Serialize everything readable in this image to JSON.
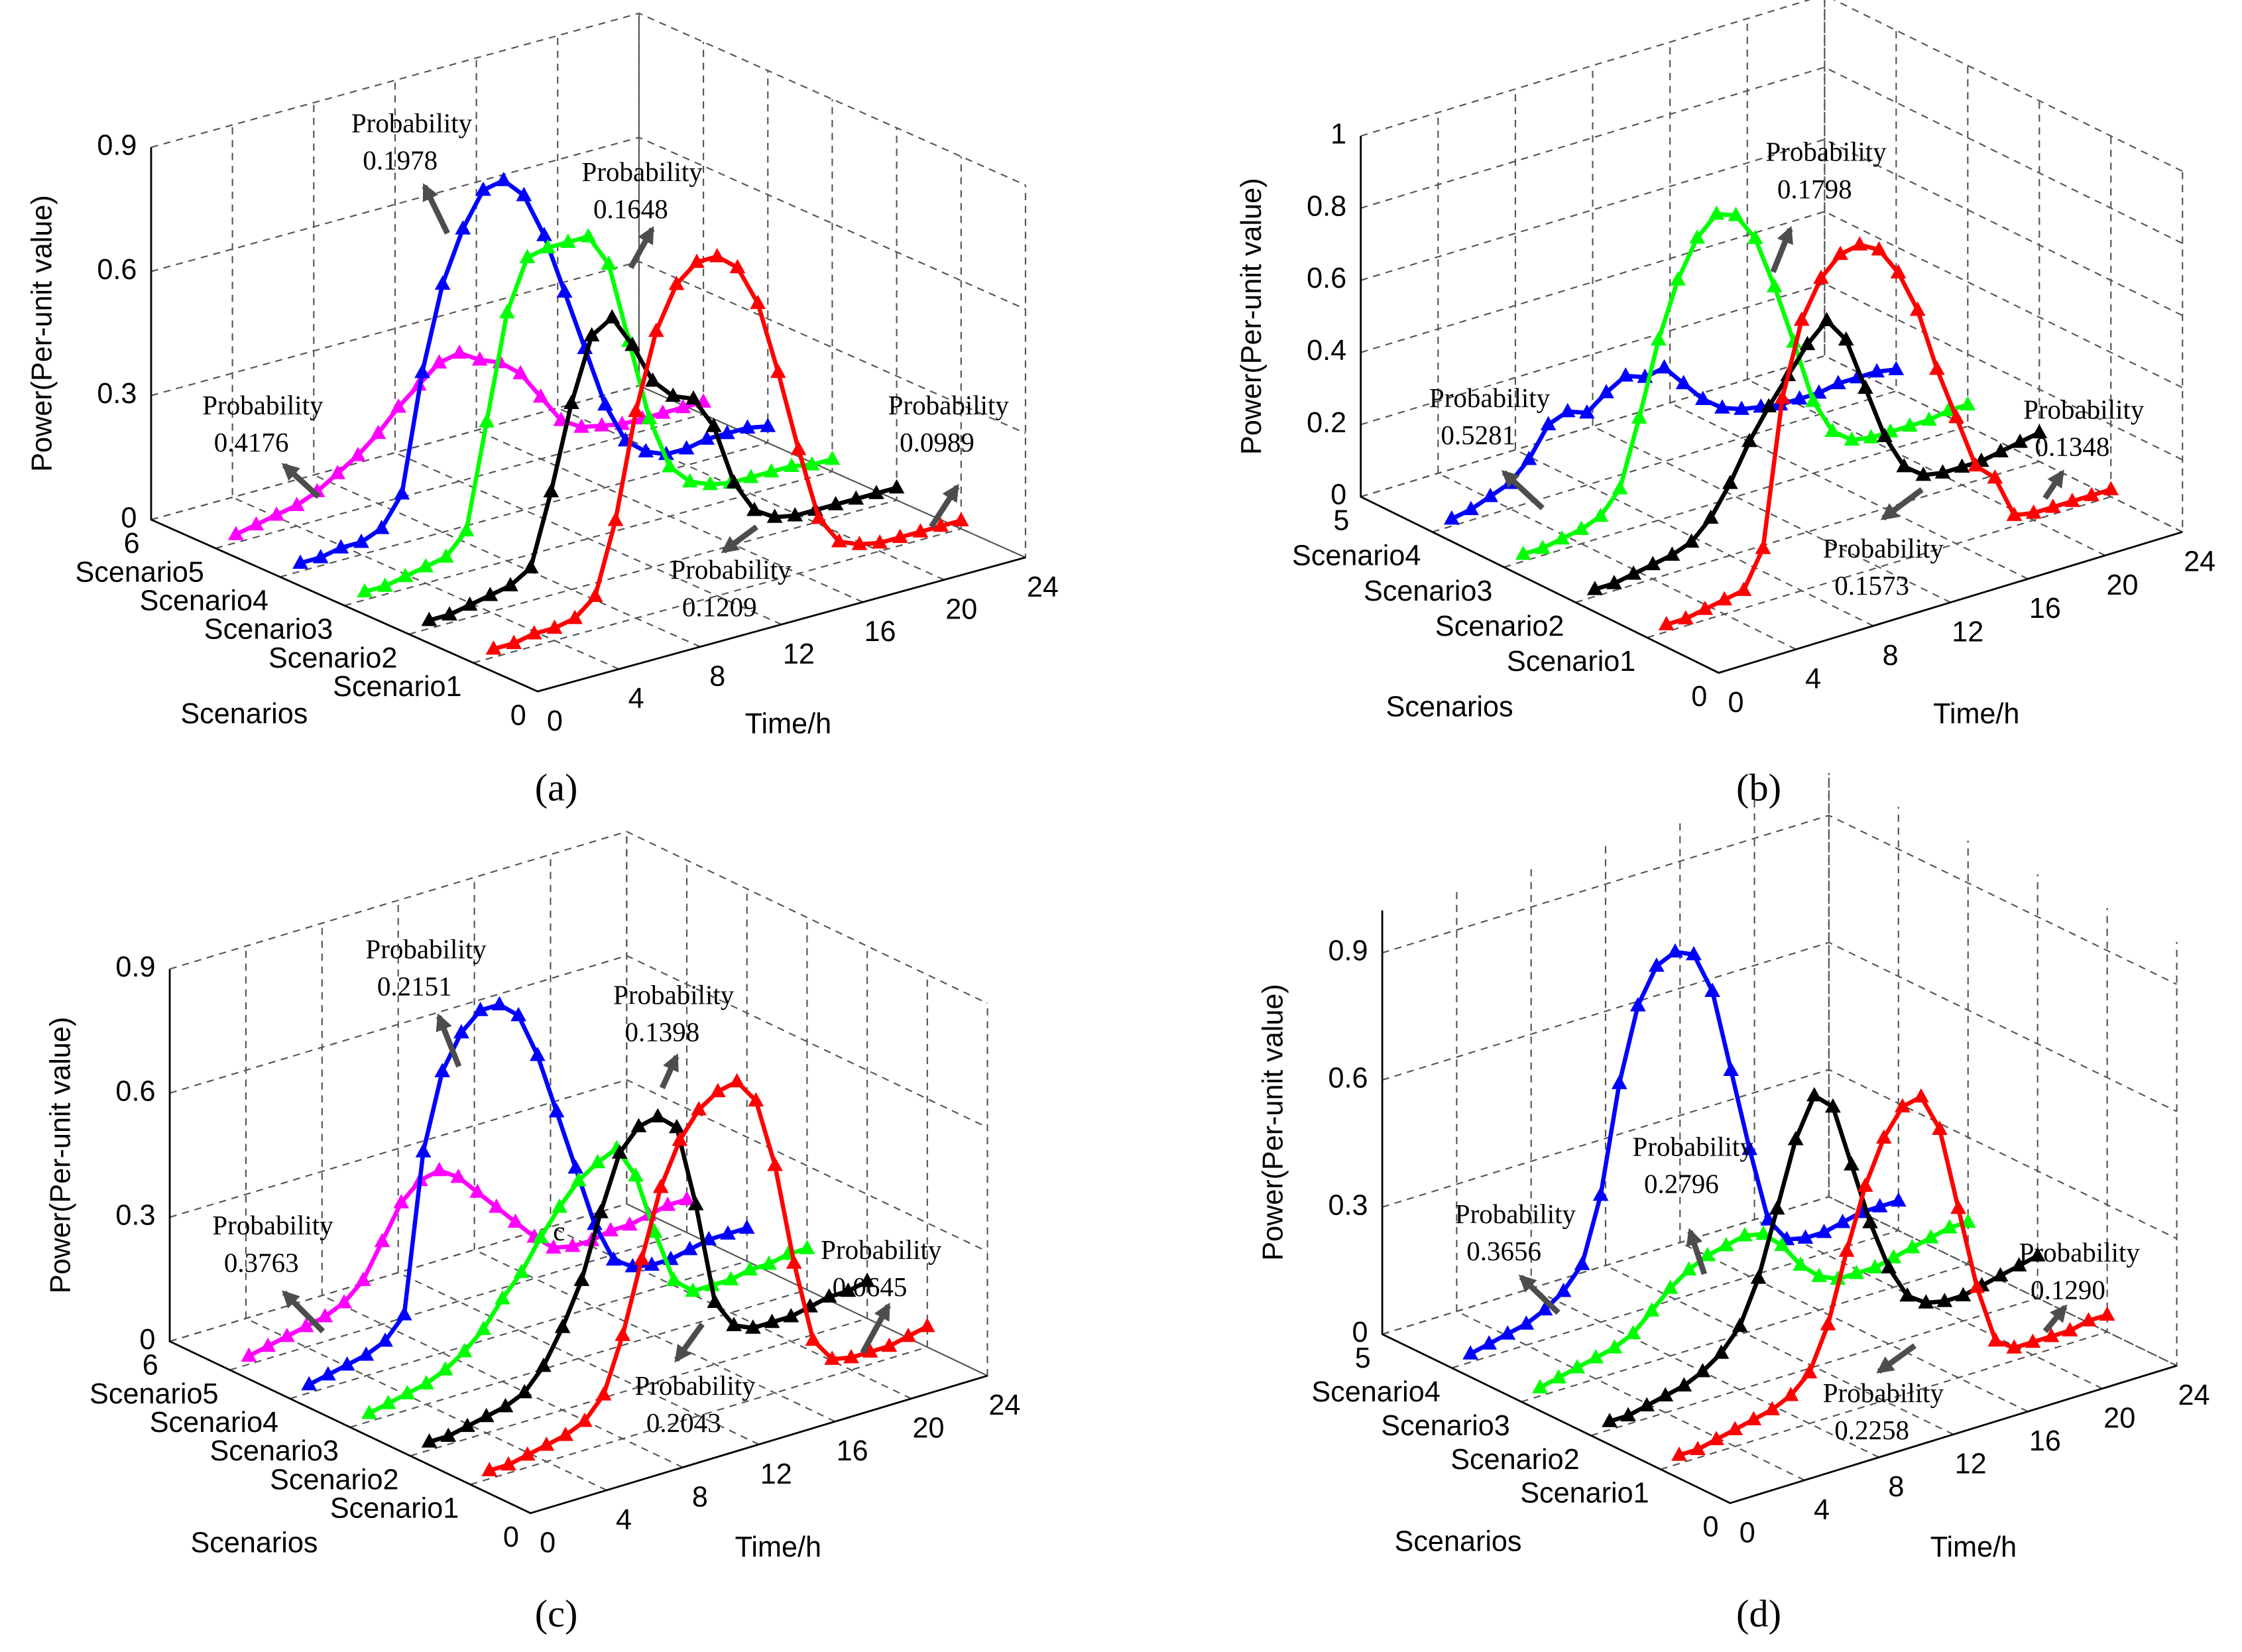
{
  "chart_data": [
    {
      "type": "line",
      "panel_label": "(a)",
      "xlabel": "Time/h",
      "ylabel": "Scenarios",
      "zlabel": "Power(Per-unit value)",
      "x": [
        1,
        2,
        3,
        4,
        5,
        6,
        7,
        8,
        9,
        10,
        11,
        12,
        13,
        14,
        15,
        16,
        17,
        18,
        19,
        20,
        21,
        22,
        23,
        24
      ],
      "xlim": [
        0,
        24
      ],
      "xticks": [
        0,
        4,
        8,
        12,
        16,
        20,
        24
      ],
      "ylim": [
        0,
        6
      ],
      "yticks": [
        0,
        {
          "value": 1,
          "label": "Scenario1"
        },
        {
          "value": 2,
          "label": "Scenario2"
        },
        {
          "value": 3,
          "label": "Scenario3"
        },
        {
          "value": 4,
          "label": "Scenario4"
        },
        {
          "value": 5,
          "label": "Scenario5"
        },
        6
      ],
      "zlim": [
        0,
        0.9
      ],
      "zticks": [
        0,
        0.3,
        0.6,
        0.9
      ],
      "grid": true,
      "series": [
        {
          "color": "#ff00ff",
          "scenario": 5,
          "annotation": "Probability",
          "probability": 0.4176,
          "values": [
            0.02,
            0.03,
            0.04,
            0.05,
            0.07,
            0.1,
            0.13,
            0.17,
            0.22,
            0.26,
            0.3,
            0.31,
            0.28,
            0.26,
            0.22,
            0.15,
            0.08,
            0.05,
            0.04,
            0.03,
            0.03,
            0.03,
            0.03,
            0.03
          ]
        },
        {
          "color": "#0000ff",
          "scenario": 4,
          "annotation": "Probability",
          "probability": 0.1978,
          "values": [
            0.02,
            0.02,
            0.03,
            0.03,
            0.05,
            0.12,
            0.4,
            0.6,
            0.72,
            0.8,
            0.81,
            0.76,
            0.65,
            0.5,
            0.35,
            0.2,
            0.1,
            0.06,
            0.04,
            0.04,
            0.05,
            0.05,
            0.05,
            0.04
          ]
        },
        {
          "color": "#00ff00",
          "scenario": 3,
          "annotation": "Probability",
          "probability": 0.1648,
          "values": [
            0.02,
            0.02,
            0.03,
            0.04,
            0.05,
            0.1,
            0.35,
            0.6,
            0.72,
            0.73,
            0.73,
            0.73,
            0.65,
            0.45,
            0.25,
            0.12,
            0.07,
            0.05,
            0.04,
            0.04,
            0.04,
            0.04,
            0.03,
            0.03
          ]
        },
        {
          "color": "#000000",
          "scenario": 2,
          "annotation": "Probability",
          "probability": 0.1209,
          "values": [
            0.02,
            0.02,
            0.03,
            0.04,
            0.05,
            0.08,
            0.25,
            0.45,
            0.6,
            0.63,
            0.55,
            0.45,
            0.4,
            0.38,
            0.3,
            0.15,
            0.07,
            0.04,
            0.03,
            0.03,
            0.03,
            0.03,
            0.03,
            0.03
          ]
        },
        {
          "color": "#ff0000",
          "scenario": 1,
          "annotation": "Probability",
          "probability": 0.0989,
          "values": [
            0.02,
            0.02,
            0.03,
            0.03,
            0.04,
            0.08,
            0.25,
            0.5,
            0.68,
            0.78,
            0.82,
            0.82,
            0.78,
            0.68,
            0.5,
            0.3,
            0.12,
            0.05,
            0.03,
            0.02,
            0.02,
            0.02,
            0.02,
            0.02
          ]
        }
      ]
    },
    {
      "type": "line",
      "panel_label": "(b)",
      "xlabel": "Time/h",
      "ylabel": "Scenarios",
      "zlabel": "Power(Per-unit value)",
      "x": [
        1,
        2,
        3,
        4,
        5,
        6,
        7,
        8,
        9,
        10,
        11,
        12,
        13,
        14,
        15,
        16,
        17,
        18,
        19,
        20,
        21,
        22,
        23,
        24
      ],
      "xlim": [
        0,
        24
      ],
      "xticks": [
        0,
        4,
        8,
        12,
        16,
        20,
        24
      ],
      "ylim": [
        0,
        5
      ],
      "yticks": [
        0,
        {
          "value": 1,
          "label": "Scenario1"
        },
        {
          "value": 2,
          "label": "Scenario2"
        },
        {
          "value": 3,
          "label": "Scenario3"
        },
        {
          "value": 4,
          "label": "Scenario4"
        },
        5
      ],
      "zlim": [
        0,
        1
      ],
      "zticks": [
        0,
        0.2,
        0.4,
        0.6,
        0.8,
        1
      ],
      "grid": true,
      "series": [
        {
          "color": "#0000ff",
          "scenario": 4,
          "annotation": "Probability",
          "probability": 0.5281,
          "values": [
            0.02,
            0.03,
            0.05,
            0.07,
            0.12,
            0.2,
            0.22,
            0.2,
            0.24,
            0.27,
            0.25,
            0.26,
            0.2,
            0.14,
            0.1,
            0.08,
            0.07,
            0.06,
            0.06,
            0.06,
            0.07,
            0.07,
            0.07,
            0.06
          ]
        },
        {
          "color": "#00ff00",
          "scenario": 3,
          "annotation": "Probability",
          "probability": 0.1798,
          "values": [
            0.02,
            0.02,
            0.03,
            0.04,
            0.06,
            0.12,
            0.3,
            0.5,
            0.65,
            0.75,
            0.8,
            0.78,
            0.7,
            0.55,
            0.38,
            0.2,
            0.1,
            0.06,
            0.05,
            0.05,
            0.05,
            0.05,
            0.06,
            0.06
          ]
        },
        {
          "color": "#000000",
          "scenario": 2,
          "annotation": "Probability",
          "probability": 0.1573,
          "values": [
            0.02,
            0.02,
            0.03,
            0.04,
            0.05,
            0.07,
            0.12,
            0.2,
            0.3,
            0.38,
            0.45,
            0.52,
            0.57,
            0.5,
            0.35,
            0.2,
            0.1,
            0.06,
            0.05,
            0.05,
            0.05,
            0.06,
            0.07,
            0.08
          ]
        },
        {
          "color": "#ff0000",
          "scenario": 1,
          "annotation": "Probability",
          "probability": 0.1348,
          "values": [
            0.02,
            0.02,
            0.03,
            0.04,
            0.05,
            0.15,
            0.55,
            0.75,
            0.85,
            0.9,
            0.91,
            0.88,
            0.8,
            0.68,
            0.5,
            0.35,
            0.2,
            0.15,
            0.03,
            0.02,
            0.02,
            0.02,
            0.02,
            0.02
          ]
        }
      ]
    },
    {
      "type": "line",
      "panel_label": "(c)",
      "xlabel": "Time/h",
      "ylabel": "Scenarios",
      "zlabel": "Power(Per-unit value)",
      "note": "c",
      "x": [
        1,
        2,
        3,
        4,
        5,
        6,
        7,
        8,
        9,
        10,
        11,
        12,
        13,
        14,
        15,
        16,
        17,
        18,
        19,
        20,
        21,
        22,
        23,
        24
      ],
      "xlim": [
        0,
        24
      ],
      "xticks": [
        0,
        4,
        8,
        12,
        16,
        20,
        24
      ],
      "ylim": [
        0,
        6
      ],
      "yticks": [
        0,
        {
          "value": 1,
          "label": "Scenario1"
        },
        {
          "value": 2,
          "label": "Scenario2"
        },
        {
          "value": 3,
          "label": "Scenario3"
        },
        {
          "value": 4,
          "label": "Scenario4"
        },
        {
          "value": 5,
          "label": "Scenario5"
        },
        6
      ],
      "zlim": [
        0,
        0.9
      ],
      "zticks": [
        0,
        0.3,
        0.6,
        0.9
      ],
      "grid": true,
      "series": [
        {
          "color": "#ff00ff",
          "scenario": 5,
          "annotation": "Probability",
          "probability": 0.3763,
          "values": [
            0.02,
            0.03,
            0.04,
            0.05,
            0.06,
            0.08,
            0.12,
            0.2,
            0.28,
            0.32,
            0.33,
            0.3,
            0.25,
            0.2,
            0.15,
            0.1,
            0.06,
            0.05,
            0.05,
            0.06,
            0.06,
            0.07,
            0.08,
            0.08
          ]
        },
        {
          "color": "#0000ff",
          "scenario": 4,
          "annotation": "Probability",
          "probability": 0.2151,
          "values": [
            0.02,
            0.03,
            0.04,
            0.05,
            0.07,
            0.12,
            0.5,
            0.68,
            0.76,
            0.8,
            0.8,
            0.76,
            0.65,
            0.5,
            0.35,
            0.2,
            0.1,
            0.07,
            0.06,
            0.06,
            0.07,
            0.08,
            0.08,
            0.08
          ]
        },
        {
          "color": "#00ff00",
          "scenario": 3,
          "annotation": "Probability",
          "probability": 0.1398,
          "values": [
            0.02,
            0.03,
            0.04,
            0.05,
            0.07,
            0.1,
            0.14,
            0.2,
            0.25,
            0.32,
            0.38,
            0.43,
            0.46,
            0.48,
            0.4,
            0.25,
            0.12,
            0.08,
            0.08,
            0.08,
            0.09,
            0.09,
            0.1,
            0.1
          ]
        },
        {
          "color": "#000000",
          "scenario": 2,
          "annotation": "Probability",
          "probability": 0.2043,
          "values": [
            0.02,
            0.02,
            0.03,
            0.04,
            0.05,
            0.07,
            0.12,
            0.2,
            0.3,
            0.45,
            0.58,
            0.63,
            0.64,
            0.6,
            0.4,
            0.15,
            0.08,
            0.06,
            0.06,
            0.06,
            0.07,
            0.08,
            0.08,
            0.09
          ]
        },
        {
          "color": "#ff0000",
          "scenario": 1,
          "annotation": "Probability",
          "probability": 0.0645,
          "values": [
            0.02,
            0.02,
            0.03,
            0.04,
            0.05,
            0.07,
            0.12,
            0.25,
            0.42,
            0.58,
            0.68,
            0.74,
            0.77,
            0.78,
            0.72,
            0.55,
            0.3,
            0.1,
            0.04,
            0.03,
            0.03,
            0.03,
            0.04,
            0.05
          ]
        }
      ]
    },
    {
      "type": "line",
      "panel_label": "(d)",
      "xlabel": "Time/h",
      "ylabel": "Scenarios",
      "zlabel": "Power(Per-unit value)",
      "x": [
        1,
        2,
        3,
        4,
        5,
        6,
        7,
        8,
        9,
        10,
        11,
        12,
        13,
        14,
        15,
        16,
        17,
        18,
        19,
        20,
        21,
        22,
        23,
        24
      ],
      "xlim": [
        0,
        24
      ],
      "xticks": [
        0,
        4,
        8,
        12,
        16,
        20,
        24
      ],
      "ylim": [
        0,
        5
      ],
      "yticks": [
        0,
        {
          "value": 1,
          "label": "Scenario1"
        },
        {
          "value": 2,
          "label": "Scenario2"
        },
        {
          "value": 3,
          "label": "Scenario3"
        },
        {
          "value": 4,
          "label": "Scenario4"
        },
        5
      ],
      "zlim": [
        0,
        1
      ],
      "zticks": [
        0,
        0.3,
        0.6,
        0.9
      ],
      "grid": true,
      "series": [
        {
          "color": "#0000ff",
          "scenario": 4,
          "annotation": "Probability",
          "probability": 0.3656,
          "values": [
            0.02,
            0.03,
            0.04,
            0.05,
            0.07,
            0.1,
            0.15,
            0.3,
            0.55,
            0.72,
            0.8,
            0.82,
            0.8,
            0.7,
            0.5,
            0.3,
            0.12,
            0.06,
            0.05,
            0.05,
            0.06,
            0.07,
            0.07,
            0.07
          ]
        },
        {
          "color": "#00ff00",
          "scenario": 3,
          "annotation": "Probability",
          "probability": 0.2796,
          "values": [
            0.02,
            0.03,
            0.04,
            0.05,
            0.06,
            0.08,
            0.12,
            0.16,
            0.19,
            0.21,
            0.22,
            0.23,
            0.22,
            0.18,
            0.12,
            0.08,
            0.06,
            0.06,
            0.06,
            0.07,
            0.08,
            0.09,
            0.1,
            0.1
          ]
        },
        {
          "color": "#000000",
          "scenario": 2,
          "annotation": "Probability",
          "probability": 0.2258,
          "values": [
            0.02,
            0.02,
            0.03,
            0.04,
            0.05,
            0.07,
            0.1,
            0.15,
            0.25,
            0.4,
            0.55,
            0.64,
            0.6,
            0.45,
            0.3,
            0.18,
            0.1,
            0.07,
            0.06,
            0.06,
            0.07,
            0.08,
            0.09,
            0.1
          ]
        },
        {
          "color": "#ff0000",
          "scenario": 1,
          "annotation": "Probability",
          "probability": {
            "value": 0.129,
            "label": "0.1290"
          },
          "values": [
            0.02,
            0.02,
            0.03,
            0.04,
            0.05,
            0.06,
            0.08,
            0.12,
            0.22,
            0.38,
            0.52,
            0.62,
            0.68,
            0.69,
            0.6,
            0.4,
            0.2,
            0.06,
            0.03,
            0.03,
            0.03,
            0.03,
            0.04,
            0.04
          ]
        }
      ]
    }
  ]
}
